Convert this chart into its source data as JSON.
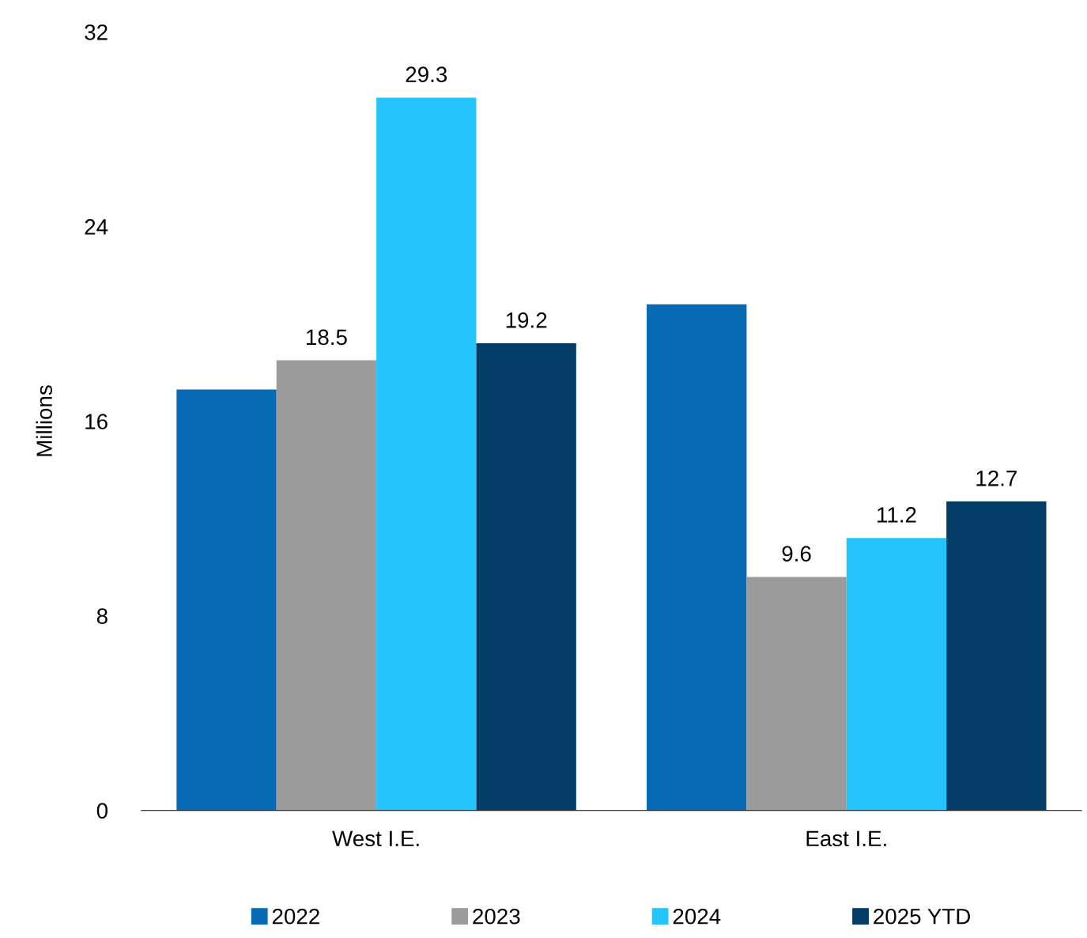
{
  "chart_data": {
    "type": "bar",
    "ylabel": "Millions",
    "categories": [
      "West I.E.",
      "East I.E."
    ],
    "series": [
      {
        "name": "2022",
        "color": "#066ab4",
        "values": [
          17.3,
          20.8
        ],
        "value_labels": [
          null,
          null
        ]
      },
      {
        "name": "2023",
        "color": "#9b9b9b",
        "values": [
          18.5,
          9.6
        ],
        "value_labels": [
          "18.5",
          "9.6"
        ]
      },
      {
        "name": "2024",
        "color": "#24c4ff",
        "values": [
          29.3,
          11.2
        ],
        "value_labels": [
          "29.3",
          "11.2"
        ]
      },
      {
        "name": "2025 YTD",
        "color": "#023d68",
        "values": [
          19.2,
          12.7
        ],
        "value_labels": [
          "19.2",
          "12.7"
        ]
      }
    ],
    "ylim": [
      0,
      32
    ],
    "yticks": [
      0,
      8,
      16,
      24,
      32
    ],
    "grid": false,
    "legend": "bottom"
  }
}
